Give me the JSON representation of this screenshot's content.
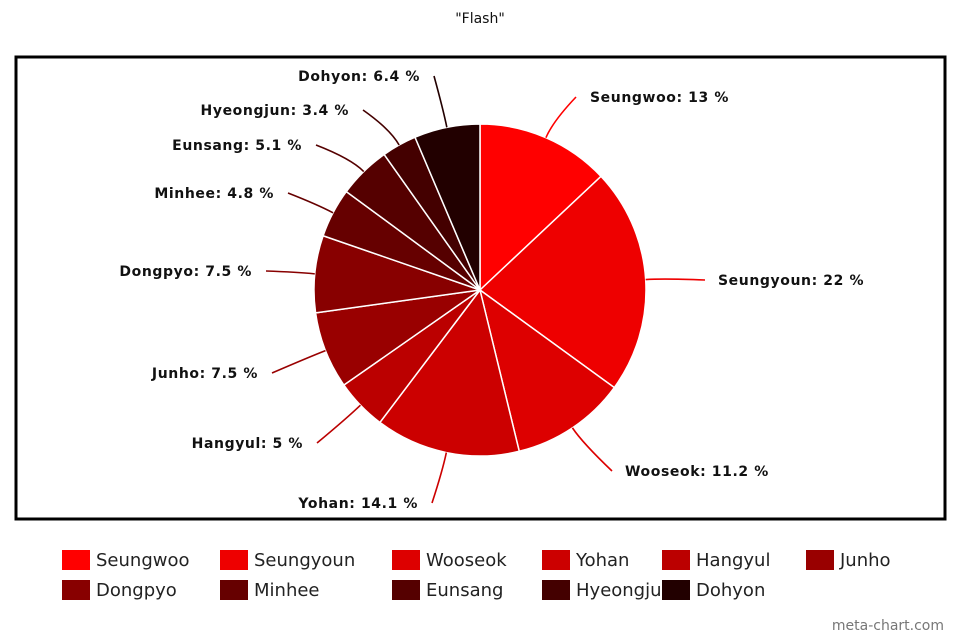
{
  "chart_data": {
    "type": "pie",
    "title": "\"Flash\"",
    "slices": [
      {
        "label": "Seungwoo",
        "value": 13,
        "color": "#ff0000"
      },
      {
        "label": "Seungyoun",
        "value": 22,
        "color": "#ee0000"
      },
      {
        "label": "Wooseok",
        "value": 11.2,
        "color": "#dd0000"
      },
      {
        "label": "Yohan",
        "value": 14.1,
        "color": "#cc0000"
      },
      {
        "label": "Hangyul",
        "value": 5,
        "color": "#bb0000"
      },
      {
        "label": "Junho",
        "value": 7.5,
        "color": "#990000"
      },
      {
        "label": "Dongpyo",
        "value": 7.5,
        "color": "#880000"
      },
      {
        "label": "Minhee",
        "value": 4.8,
        "color": "#660000"
      },
      {
        "label": "Eunsang",
        "value": 5.1,
        "color": "#550000"
      },
      {
        "label": "Hyeongjun",
        "value": 3.4,
        "color": "#440000"
      },
      {
        "label": "Dohyon",
        "value": 6.4,
        "color": "#220000"
      }
    ],
    "data_labels": [
      "Seungwoo: 13 %",
      "Seungyoun: 22 %",
      "Wooseok: 11.2 %",
      "Yohan: 14.1 %",
      "Hangyul: 5 %",
      "Junho: 7.5 %",
      "Dongpyo: 7.5 %",
      "Minhee: 4.8 %",
      "Eunsang: 5.1 %",
      "Hyeongjun: 3.4 %",
      "Dohyon: 6.4 %"
    ],
    "legend_placement": "bottom"
  },
  "watermark": "meta-chart.com"
}
